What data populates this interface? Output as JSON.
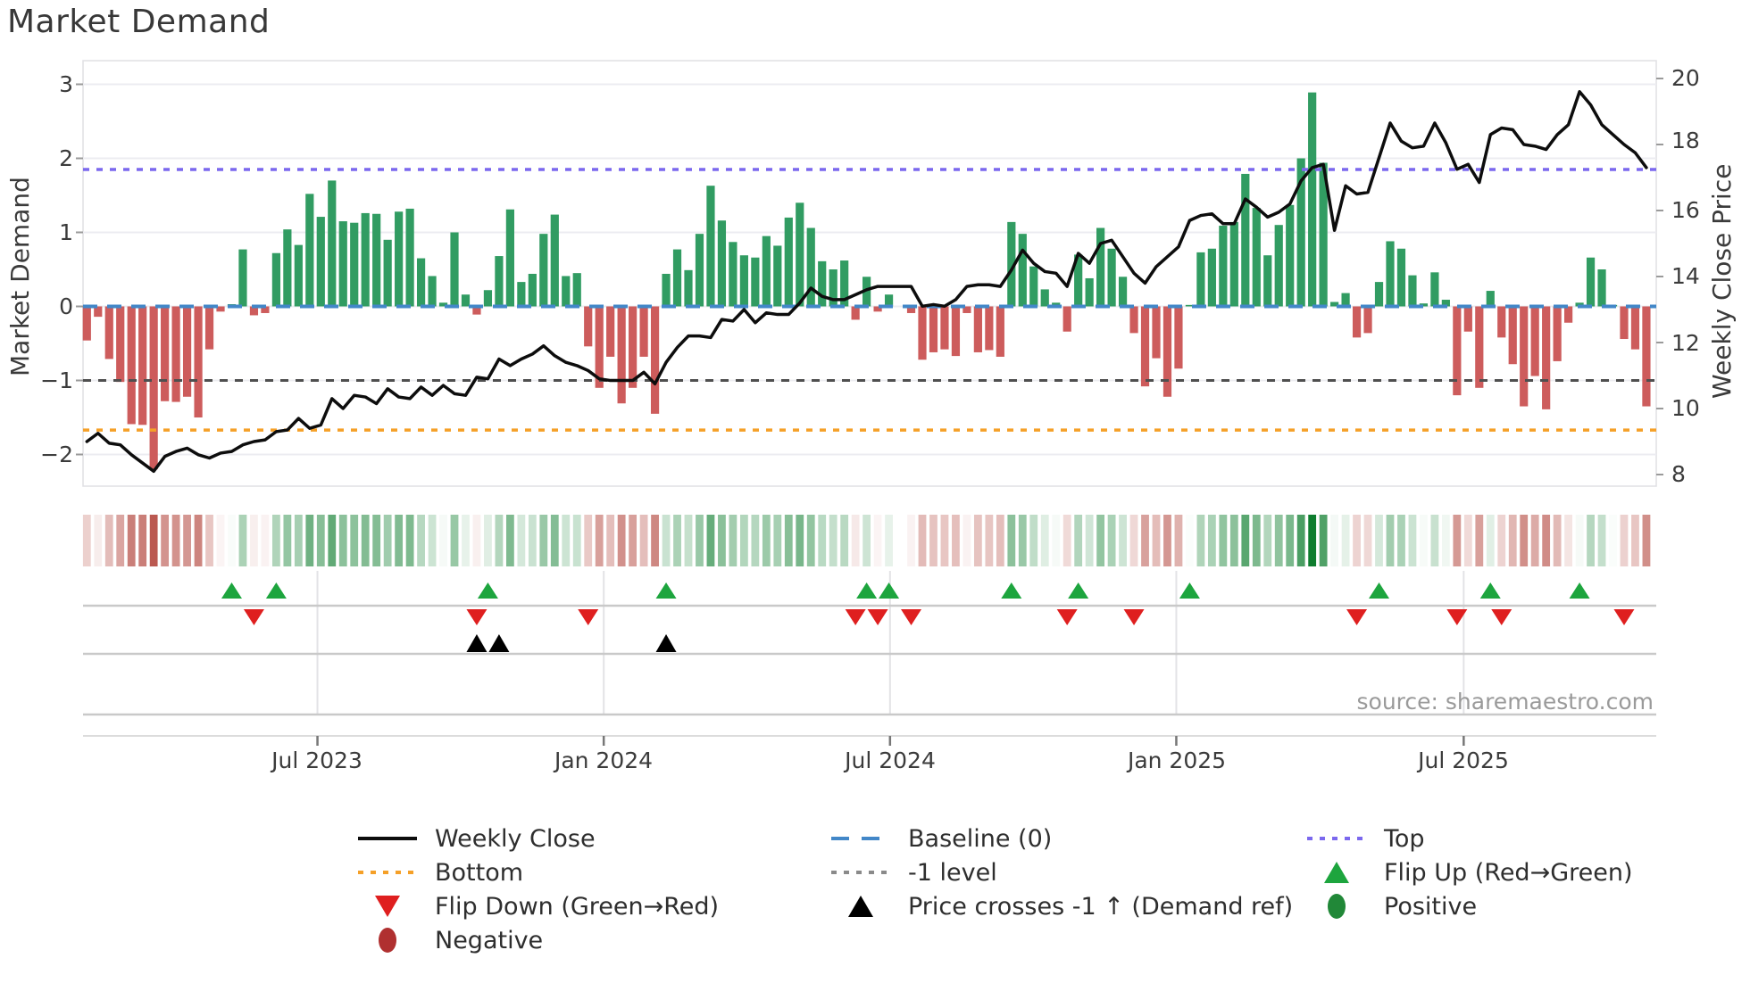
{
  "title": "Market Demand",
  "source": "source: sharemaestro.com",
  "left_axis": {
    "label": "Market Demand",
    "ticks": [
      "3",
      "2",
      "1",
      "0",
      "−1",
      "−2"
    ],
    "tick_values": [
      3,
      2,
      1,
      0,
      -1,
      -2
    ]
  },
  "right_axis": {
    "label": "Weekly Close Price",
    "ticks": [
      "20",
      "18",
      "16",
      "14",
      "12",
      "10",
      "8"
    ],
    "tick_values": [
      20,
      18,
      16,
      14,
      12,
      10,
      8
    ]
  },
  "x_axis": {
    "ticks": [
      "Jul 2023",
      "Jan 2024",
      "Jul 2024",
      "Jan 2025",
      "Jul 2025"
    ],
    "tick_weeks": [
      20.7,
      46.4,
      72.1,
      97.8,
      123.6
    ]
  },
  "colors": {
    "bar_positive": "#319c62",
    "bar_negative": "#cd5c5c",
    "price_line": "#0d0d0d",
    "baseline": "#4287c8",
    "top_line": "#7b68ee",
    "bottom_line": "#f5a028",
    "minus_one_line": "#4f4f4f",
    "flip_up": "#1da53e",
    "flip_down": "#df1f1f",
    "price_cross": "#000000",
    "positive_swatch": "#218838",
    "negative_swatch": "#b03030",
    "grid": "#ececf1",
    "spine": "#e0e0e4",
    "panel_line": "#c9c9c9",
    "heat_green": "#0d7d2d",
    "heat_red": "#aa3026"
  },
  "legend": {
    "items": [
      {
        "label": "Weekly Close",
        "swatch": "line-black"
      },
      {
        "label": "Baseline (0)",
        "swatch": "dash-blue"
      },
      {
        "label": "Top",
        "swatch": "dot-purple"
      },
      {
        "label": "Bottom",
        "swatch": "dot-orange"
      },
      {
        "label": "-1 level",
        "swatch": "dot-gray"
      },
      {
        "label": "Flip Up (Red→Green)",
        "swatch": "tri-up-green"
      },
      {
        "label": "Flip Down (Green→Red)",
        "swatch": "tri-down-red"
      },
      {
        "label": "Price crosses -1 ↑ (Demand ref)",
        "swatch": "tri-up-black"
      },
      {
        "label": "Positive",
        "swatch": "ellipse-green"
      },
      {
        "label": "Negative",
        "swatch": "ellipse-darkred"
      }
    ]
  },
  "chart_data": {
    "type": "bar",
    "subtype": "combo-bar-line-heatmap",
    "x_unit": "week",
    "x_range_note": "weekly data from ~Feb 2023 to ~Oct 2025",
    "ylim_left": [
      -2.5,
      3.1
    ],
    "ylim_right": [
      8,
      20
    ],
    "grid": "horizontal-only",
    "series": [
      {
        "name": "Market Demand",
        "type": "bar",
        "axis": "left",
        "values": [
          -0.46,
          -0.14,
          -0.71,
          -1.02,
          -1.59,
          -1.6,
          -2.2,
          -1.28,
          -1.29,
          -1.22,
          -1.5,
          -0.58,
          -0.07,
          0.03,
          0.77,
          -0.12,
          -0.09,
          0.72,
          1.04,
          0.83,
          1.52,
          1.21,
          1.7,
          1.15,
          1.13,
          1.26,
          1.25,
          0.9,
          1.28,
          1.32,
          0.65,
          0.41,
          0.05,
          1.0,
          0.16,
          -0.11,
          0.22,
          0.68,
          1.31,
          0.33,
          0.44,
          0.98,
          1.24,
          0.41,
          0.45,
          -0.54,
          -1.1,
          -0.68,
          -1.31,
          -1.1,
          -0.68,
          -1.45,
          0.44,
          0.77,
          0.49,
          0.98,
          1.63,
          1.16,
          0.87,
          0.69,
          0.66,
          0.95,
          0.82,
          1.2,
          1.4,
          1.06,
          0.61,
          0.5,
          0.62,
          -0.18,
          0.4,
          -0.07,
          0.16,
          0.0,
          -0.09,
          -0.72,
          -0.62,
          -0.58,
          -0.67,
          -0.09,
          -0.62,
          -0.59,
          -0.68,
          1.14,
          0.98,
          0.54,
          0.23,
          0.05,
          -0.34,
          0.7,
          0.38,
          1.06,
          0.78,
          0.4,
          -0.36,
          -1.08,
          -0.7,
          -1.22,
          -0.84,
          0.02,
          0.73,
          0.78,
          1.09,
          1.14,
          1.79,
          1.33,
          0.69,
          1.1,
          1.37,
          2.0,
          2.89,
          1.94,
          0.06,
          0.18,
          -0.42,
          -0.36,
          0.33,
          0.88,
          0.78,
          0.42,
          0.04,
          0.46,
          0.09,
          -1.2,
          -0.34,
          -1.1,
          0.21,
          -0.42,
          -0.78,
          -1.35,
          -0.94,
          -1.39,
          -0.74,
          -0.22,
          0.05,
          0.66,
          0.5,
          0.02,
          -0.44,
          -0.58,
          -1.35
        ]
      },
      {
        "name": "Weekly Close",
        "type": "line",
        "axis": "right",
        "values": [
          9.0,
          9.25,
          8.95,
          8.9,
          8.6,
          8.35,
          8.1,
          8.55,
          8.7,
          8.8,
          8.6,
          8.5,
          8.65,
          8.7,
          8.9,
          9.0,
          9.05,
          9.3,
          9.35,
          9.7,
          9.4,
          9.5,
          10.3,
          10.0,
          10.4,
          10.35,
          10.15,
          10.6,
          10.35,
          10.3,
          10.65,
          10.4,
          10.7,
          10.45,
          10.4,
          10.95,
          10.9,
          11.5,
          11.3,
          11.5,
          11.65,
          11.9,
          11.6,
          11.4,
          11.3,
          11.15,
          10.9,
          10.85,
          10.85,
          10.85,
          11.1,
          10.75,
          11.4,
          11.85,
          12.2,
          12.2,
          12.15,
          12.7,
          12.65,
          13.0,
          12.6,
          12.9,
          12.85,
          12.85,
          13.2,
          13.65,
          13.4,
          13.3,
          13.3,
          13.45,
          13.6,
          13.7,
          13.7,
          13.7,
          13.7,
          13.1,
          13.15,
          13.1,
          13.3,
          13.7,
          13.75,
          13.75,
          13.7,
          14.2,
          14.8,
          14.4,
          14.15,
          14.1,
          13.7,
          14.7,
          14.4,
          15.0,
          15.1,
          14.6,
          14.1,
          13.8,
          14.3,
          14.6,
          14.9,
          15.7,
          15.85,
          15.9,
          15.6,
          15.6,
          16.35,
          16.1,
          15.8,
          15.95,
          16.2,
          16.9,
          17.3,
          17.4,
          15.4,
          16.75,
          16.5,
          16.55,
          17.6,
          18.65,
          18.1,
          17.9,
          17.95,
          18.65,
          18.05,
          17.25,
          17.4,
          16.85,
          18.3,
          18.5,
          18.45,
          18.0,
          17.95,
          17.85,
          18.3,
          18.6,
          19.6,
          19.2,
          18.6,
          18.3,
          18.0,
          17.75,
          17.3
        ]
      }
    ],
    "reference_lines": {
      "baseline": 0,
      "top": 1.85,
      "bottom": -1.67,
      "minus_one": -1
    },
    "heatmap": {
      "note": "strip of weekly cells colored by demand value, red negative to green positive",
      "vmax": 2.9
    },
    "markers": {
      "flip_up_weeks": [
        13,
        17,
        36,
        52,
        70,
        72,
        83,
        89,
        99,
        116,
        126,
        134
      ],
      "flip_down_weeks": [
        15,
        35,
        45,
        69,
        71,
        74,
        88,
        94,
        114,
        123,
        127,
        138
      ],
      "price_cross_weeks": [
        35,
        37,
        52
      ]
    }
  }
}
